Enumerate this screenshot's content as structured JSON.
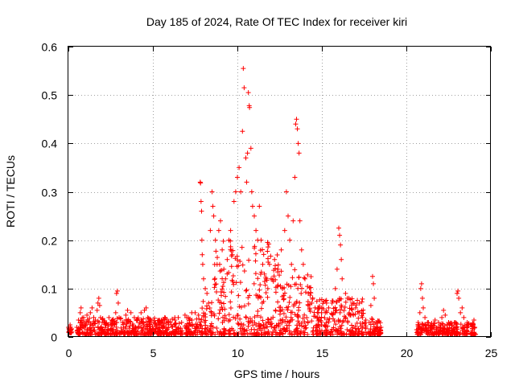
{
  "chart_data": {
    "type": "scatter",
    "title": "Day 185 of 2024, Rate Of TEC Index for receiver kiri",
    "xlabel": "GPS time / hours",
    "ylabel": "ROTI / TECUs",
    "xlim": [
      0,
      25
    ],
    "ylim": [
      0,
      0.6
    ],
    "xticks": [
      0,
      5,
      10,
      15,
      20,
      25
    ],
    "yticks": [
      0,
      0.1,
      0.2,
      0.3,
      0.4,
      0.5,
      0.6
    ],
    "xtick_labels": [
      "0",
      "5",
      "10",
      "15",
      "20",
      "25"
    ],
    "ytick_labels": [
      "0",
      "0.1",
      "0.2",
      "0.3",
      "0.4",
      "0.5",
      "0.6"
    ],
    "grid": true,
    "marker": "+",
    "color": "#ff0000",
    "series": [
      {
        "name": "ROTI",
        "points": [
          [
            0.0,
            0.02
          ],
          [
            0.05,
            0.012
          ],
          [
            0.1,
            0.025
          ],
          [
            0.15,
            0.015
          ],
          [
            0.5,
            0.02
          ],
          [
            0.6,
            0.035
          ],
          [
            0.7,
            0.05
          ],
          [
            0.75,
            0.06
          ],
          [
            0.8,
            0.03
          ],
          [
            0.9,
            0.04
          ],
          [
            1.0,
            0.025
          ],
          [
            1.1,
            0.045
          ],
          [
            1.2,
            0.03
          ],
          [
            1.3,
            0.05
          ],
          [
            1.4,
            0.06
          ],
          [
            1.5,
            0.04
          ],
          [
            1.6,
            0.035
          ],
          [
            1.7,
            0.055
          ],
          [
            1.75,
            0.07
          ],
          [
            1.8,
            0.08
          ],
          [
            1.85,
            0.065
          ],
          [
            1.9,
            0.04
          ],
          [
            2.0,
            0.03
          ],
          [
            2.2,
            0.025
          ],
          [
            2.4,
            0.04
          ],
          [
            2.6,
            0.035
          ],
          [
            2.8,
            0.05
          ],
          [
            2.85,
            0.09
          ],
          [
            2.9,
            0.095
          ],
          [
            2.95,
            0.07
          ],
          [
            3.0,
            0.04
          ],
          [
            3.2,
            0.03
          ],
          [
            3.4,
            0.045
          ],
          [
            3.5,
            0.055
          ],
          [
            3.7,
            0.05
          ],
          [
            3.9,
            0.04
          ],
          [
            4.1,
            0.035
          ],
          [
            4.3,
            0.05
          ],
          [
            4.5,
            0.055
          ],
          [
            4.6,
            0.06
          ],
          [
            4.7,
            0.04
          ],
          [
            4.9,
            0.03
          ],
          [
            5.1,
            0.025
          ],
          [
            5.3,
            0.02
          ],
          [
            5.5,
            0.035
          ],
          [
            5.7,
            0.04
          ],
          [
            5.9,
            0.03
          ],
          [
            6.1,
            0.025
          ],
          [
            6.3,
            0.035
          ],
          [
            6.5,
            0.04
          ],
          [
            6.7,
            0.03
          ],
          [
            6.9,
            0.045
          ],
          [
            7.1,
            0.04
          ],
          [
            7.3,
            0.05
          ],
          [
            7.5,
            0.05
          ],
          [
            7.7,
            0.045
          ],
          [
            7.8,
            0.32
          ],
          [
            7.82,
            0.318
          ],
          [
            7.85,
            0.28
          ],
          [
            7.88,
            0.26
          ],
          [
            7.9,
            0.2
          ],
          [
            7.92,
            0.17
          ],
          [
            7.95,
            0.15
          ],
          [
            8.0,
            0.12
          ],
          [
            8.1,
            0.1
          ],
          [
            8.2,
            0.09
          ],
          [
            8.3,
            0.07
          ],
          [
            8.4,
            0.22
          ],
          [
            8.5,
            0.3
          ],
          [
            8.55,
            0.27
          ],
          [
            8.6,
            0.25
          ],
          [
            8.7,
            0.2
          ],
          [
            8.8,
            0.15
          ],
          [
            8.9,
            0.22
          ],
          [
            9.0,
            0.24
          ],
          [
            9.1,
            0.18
          ],
          [
            9.2,
            0.14
          ],
          [
            9.3,
            0.12
          ],
          [
            9.4,
            0.16
          ],
          [
            9.5,
            0.2
          ],
          [
            9.6,
            0.22
          ],
          [
            9.7,
            0.17
          ],
          [
            9.8,
            0.28
          ],
          [
            9.9,
            0.3
          ],
          [
            10.0,
            0.33
          ],
          [
            10.1,
            0.35
          ],
          [
            10.2,
            0.3
          ],
          [
            10.3,
            0.425
          ],
          [
            10.35,
            0.555
          ],
          [
            10.4,
            0.515
          ],
          [
            10.5,
            0.37
          ],
          [
            10.55,
            0.32
          ],
          [
            10.6,
            0.38
          ],
          [
            10.65,
            0.505
          ],
          [
            10.7,
            0.478
          ],
          [
            10.72,
            0.474
          ],
          [
            10.8,
            0.39
          ],
          [
            10.85,
            0.3
          ],
          [
            10.9,
            0.27
          ],
          [
            11.0,
            0.25
          ],
          [
            11.1,
            0.22
          ],
          [
            11.2,
            0.2
          ],
          [
            11.3,
            0.27
          ],
          [
            11.4,
            0.2
          ],
          [
            11.5,
            0.15
          ],
          [
            11.6,
            0.13
          ],
          [
            11.7,
            0.12
          ],
          [
            11.8,
            0.1
          ],
          [
            11.9,
            0.15
          ],
          [
            12.0,
            0.12
          ],
          [
            12.2,
            0.16
          ],
          [
            12.4,
            0.14
          ],
          [
            12.6,
            0.18
          ],
          [
            12.8,
            0.22
          ],
          [
            12.9,
            0.3
          ],
          [
            13.0,
            0.25
          ],
          [
            13.1,
            0.2
          ],
          [
            13.2,
            0.15
          ],
          [
            13.3,
            0.24
          ],
          [
            13.4,
            0.33
          ],
          [
            13.45,
            0.44
          ],
          [
            13.5,
            0.45
          ],
          [
            13.55,
            0.43
          ],
          [
            13.6,
            0.4
          ],
          [
            13.65,
            0.38
          ],
          [
            13.7,
            0.24
          ],
          [
            13.8,
            0.18
          ],
          [
            13.9,
            0.15
          ],
          [
            14.0,
            0.12
          ],
          [
            14.2,
            0.09
          ],
          [
            14.4,
            0.07
          ],
          [
            14.6,
            0.06
          ],
          [
            14.8,
            0.05
          ],
          [
            15.0,
            0.06
          ],
          [
            15.2,
            0.05
          ],
          [
            15.4,
            0.06
          ],
          [
            15.6,
            0.07
          ],
          [
            15.8,
            0.1
          ],
          [
            15.9,
            0.14
          ],
          [
            16.0,
            0.225
          ],
          [
            16.05,
            0.21
          ],
          [
            16.1,
            0.19
          ],
          [
            16.15,
            0.16
          ],
          [
            16.2,
            0.12
          ],
          [
            16.4,
            0.09
          ],
          [
            16.6,
            0.08
          ],
          [
            16.8,
            0.07
          ],
          [
            17.0,
            0.06
          ],
          [
            17.2,
            0.05
          ],
          [
            17.4,
            0.04
          ],
          [
            17.6,
            0.035
          ],
          [
            17.8,
            0.03
          ],
          [
            17.9,
            0.065
          ],
          [
            18.0,
            0.125
          ],
          [
            18.05,
            0.11
          ],
          [
            18.1,
            0.08
          ],
          [
            18.2,
            0.03
          ],
          [
            18.3,
            0.02
          ],
          [
            18.4,
            0.015
          ],
          [
            18.5,
            0.02
          ],
          [
            20.7,
            0.03
          ],
          [
            20.8,
            0.05
          ],
          [
            20.85,
            0.1
          ],
          [
            20.9,
            0.11
          ],
          [
            20.95,
            0.08
          ],
          [
            21.0,
            0.06
          ],
          [
            21.1,
            0.04
          ],
          [
            21.3,
            0.03
          ],
          [
            21.5,
            0.025
          ],
          [
            21.7,
            0.035
          ],
          [
            21.9,
            0.03
          ],
          [
            22.1,
            0.04
          ],
          [
            22.2,
            0.055
          ],
          [
            22.3,
            0.045
          ],
          [
            22.5,
            0.03
          ],
          [
            22.7,
            0.025
          ],
          [
            22.9,
            0.03
          ],
          [
            23.0,
            0.09
          ],
          [
            23.05,
            0.095
          ],
          [
            23.1,
            0.08
          ],
          [
            23.2,
            0.05
          ],
          [
            23.3,
            0.06
          ],
          [
            23.4,
            0.04
          ],
          [
            23.6,
            0.03
          ],
          [
            23.8,
            0.025
          ],
          [
            24.0,
            0.035
          ],
          [
            24.05,
            0.02
          ]
        ],
        "dense_bands": [
          {
            "x_range": [
              0.0,
              0.2
            ],
            "y_range": [
              0.008,
              0.02
            ]
          },
          {
            "x_range": [
              0.5,
              7.8
            ],
            "y_range": [
              0.005,
              0.04
            ]
          },
          {
            "x_range": [
              7.8,
              8.5
            ],
            "y_range": [
              0.005,
              0.08
            ]
          },
          {
            "x_range": [
              8.5,
              12.5
            ],
            "y_range": [
              0.005,
              0.2
            ]
          },
          {
            "x_range": [
              12.5,
              14.5
            ],
            "y_range": [
              0.005,
              0.14
            ]
          },
          {
            "x_range": [
              14.5,
              17.5
            ],
            "y_range": [
              0.005,
              0.08
            ]
          },
          {
            "x_range": [
              17.5,
              18.5
            ],
            "y_range": [
              0.005,
              0.04
            ]
          },
          {
            "x_range": [
              20.6,
              24.1
            ],
            "y_range": [
              0.005,
              0.03
            ]
          }
        ]
      }
    ]
  }
}
